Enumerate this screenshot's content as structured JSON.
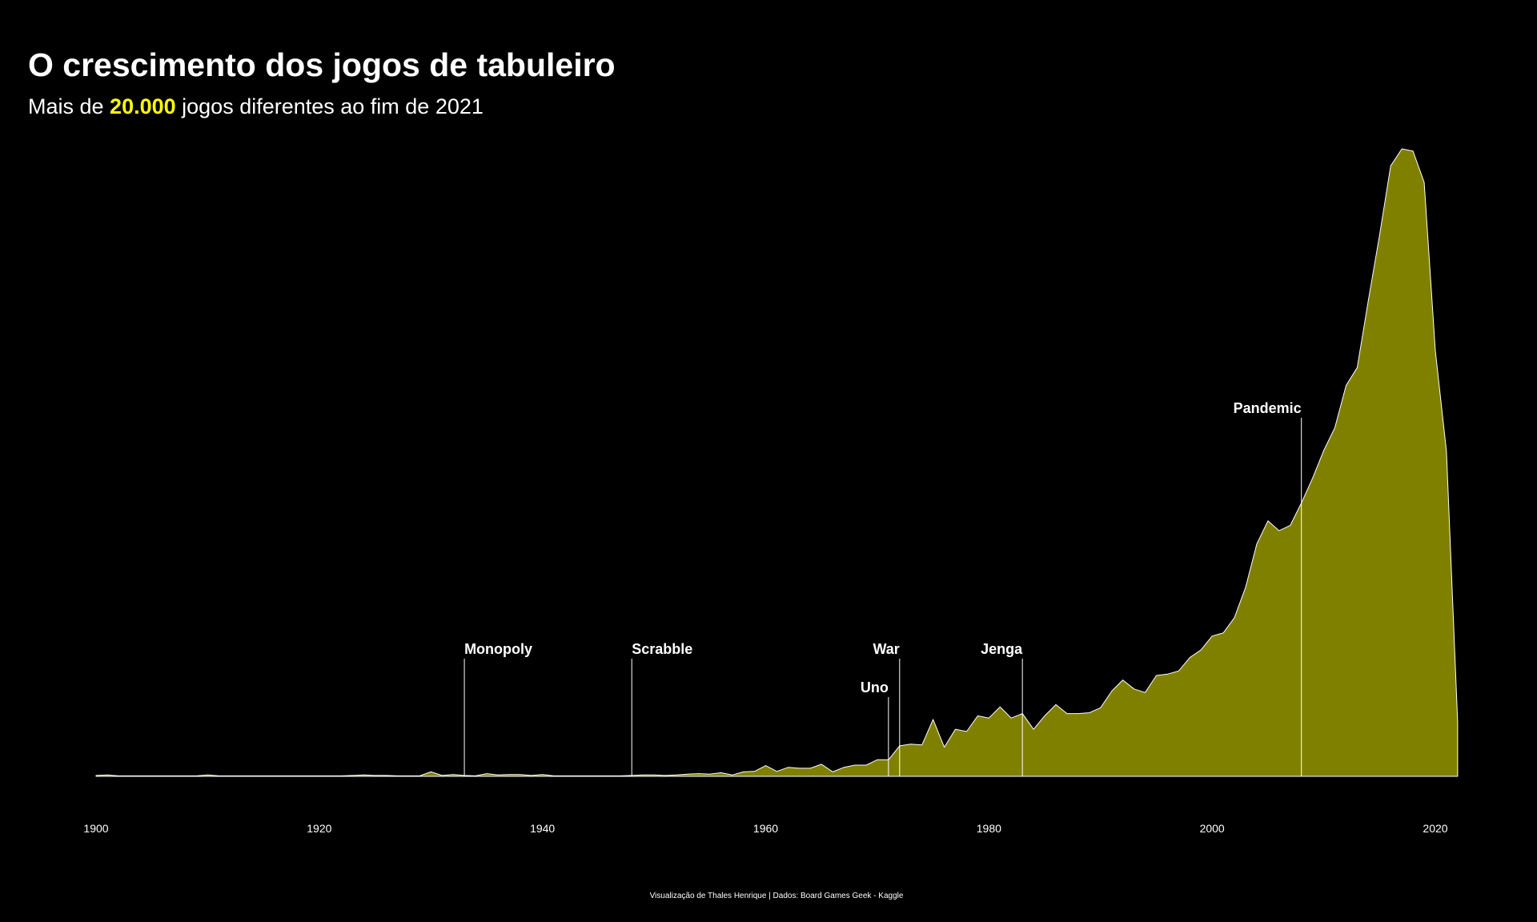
{
  "header": {
    "title": "O crescimento dos jogos de tabuleiro",
    "subtitle_pre": "Mais de ",
    "subtitle_highlight": "20.000",
    "subtitle_post": " jogos diferentes ao fim de 2021"
  },
  "caption": "Visualização de Thales Henrique | Dados: Board Games Geek - Kaggle",
  "colors": {
    "background": "#000000",
    "area_fill": "#808000",
    "area_stroke": "#ffffff",
    "highlight": "#ffff00",
    "text": "#ffffff"
  },
  "chart_data": {
    "type": "area",
    "xlabel": "",
    "ylabel": "",
    "xlim": [
      1900,
      2022
    ],
    "ylim": [
      0,
      1400
    ],
    "x_ticks": [
      1900,
      1920,
      1940,
      1960,
      1980,
      2000,
      2020
    ],
    "y_axis_visible": false,
    "grid": false,
    "points": [
      [
        1900,
        2
      ],
      [
        1901,
        3
      ],
      [
        1902,
        1
      ],
      [
        1903,
        1
      ],
      [
        1904,
        1
      ],
      [
        1905,
        1
      ],
      [
        1906,
        1
      ],
      [
        1907,
        1
      ],
      [
        1908,
        1
      ],
      [
        1909,
        1
      ],
      [
        1910,
        3
      ],
      [
        1911,
        1
      ],
      [
        1912,
        1
      ],
      [
        1913,
        1
      ],
      [
        1914,
        1
      ],
      [
        1915,
        1
      ],
      [
        1916,
        1
      ],
      [
        1917,
        1
      ],
      [
        1918,
        1
      ],
      [
        1919,
        1
      ],
      [
        1920,
        1
      ],
      [
        1921,
        1
      ],
      [
        1922,
        1
      ],
      [
        1923,
        2
      ],
      [
        1924,
        3
      ],
      [
        1925,
        2
      ],
      [
        1926,
        2
      ],
      [
        1927,
        1
      ],
      [
        1928,
        1
      ],
      [
        1929,
        1
      ],
      [
        1930,
        10
      ],
      [
        1931,
        2
      ],
      [
        1932,
        4
      ],
      [
        1933,
        2
      ],
      [
        1934,
        1
      ],
      [
        1935,
        6
      ],
      [
        1936,
        3
      ],
      [
        1937,
        4
      ],
      [
        1938,
        4
      ],
      [
        1939,
        2
      ],
      [
        1940,
        4
      ],
      [
        1941,
        1
      ],
      [
        1942,
        1
      ],
      [
        1943,
        1
      ],
      [
        1944,
        1
      ],
      [
        1945,
        1
      ],
      [
        1946,
        1
      ],
      [
        1947,
        1
      ],
      [
        1948,
        2
      ],
      [
        1949,
        3
      ],
      [
        1950,
        3
      ],
      [
        1951,
        2
      ],
      [
        1952,
        3
      ],
      [
        1953,
        5
      ],
      [
        1954,
        6
      ],
      [
        1955,
        5
      ],
      [
        1956,
        8
      ],
      [
        1957,
        3
      ],
      [
        1958,
        10
      ],
      [
        1959,
        11
      ],
      [
        1960,
        24
      ],
      [
        1961,
        11
      ],
      [
        1962,
        20
      ],
      [
        1963,
        18
      ],
      [
        1964,
        18
      ],
      [
        1965,
        27
      ],
      [
        1966,
        10
      ],
      [
        1967,
        20
      ],
      [
        1968,
        25
      ],
      [
        1969,
        25
      ],
      [
        1970,
        37
      ],
      [
        1971,
        37
      ],
      [
        1972,
        68
      ],
      [
        1973,
        72
      ],
      [
        1974,
        70
      ],
      [
        1975,
        127
      ],
      [
        1976,
        65
      ],
      [
        1977,
        105
      ],
      [
        1978,
        100
      ],
      [
        1979,
        135
      ],
      [
        1980,
        130
      ],
      [
        1981,
        155
      ],
      [
        1982,
        130
      ],
      [
        1983,
        140
      ],
      [
        1984,
        105
      ],
      [
        1985,
        135
      ],
      [
        1986,
        160
      ],
      [
        1987,
        140
      ],
      [
        1988,
        140
      ],
      [
        1989,
        142
      ],
      [
        1990,
        153
      ],
      [
        1991,
        190
      ],
      [
        1992,
        215
      ],
      [
        1993,
        195
      ],
      [
        1994,
        187
      ],
      [
        1995,
        225
      ],
      [
        1996,
        228
      ],
      [
        1997,
        235
      ],
      [
        1998,
        265
      ],
      [
        1999,
        282
      ],
      [
        2000,
        313
      ],
      [
        2001,
        320
      ],
      [
        2002,
        354
      ],
      [
        2003,
        422
      ],
      [
        2004,
        518
      ],
      [
        2005,
        570
      ],
      [
        2006,
        548
      ],
      [
        2007,
        560
      ],
      [
        2008,
        610
      ],
      [
        2009,
        665
      ],
      [
        2010,
        727
      ],
      [
        2011,
        778
      ],
      [
        2012,
        872
      ],
      [
        2013,
        912
      ],
      [
        2014,
        1062
      ],
      [
        2015,
        1207
      ],
      [
        2016,
        1362
      ],
      [
        2017,
        1400
      ],
      [
        2018,
        1395
      ],
      [
        2019,
        1325
      ],
      [
        2020,
        950
      ],
      [
        2021,
        725
      ],
      [
        2022,
        120
      ]
    ],
    "annotations": [
      {
        "label": "Monopoly",
        "x": 1933,
        "level": 1
      },
      {
        "label": "Scrabble",
        "x": 1948,
        "level": 1
      },
      {
        "label": "Uno",
        "x": 1971,
        "level": 2
      },
      {
        "label": "War",
        "x": 1972,
        "level": 1
      },
      {
        "label": "Jenga",
        "x": 1983,
        "level": 1
      },
      {
        "label": "Pandemic",
        "x": 2008,
        "level": 0
      }
    ]
  }
}
